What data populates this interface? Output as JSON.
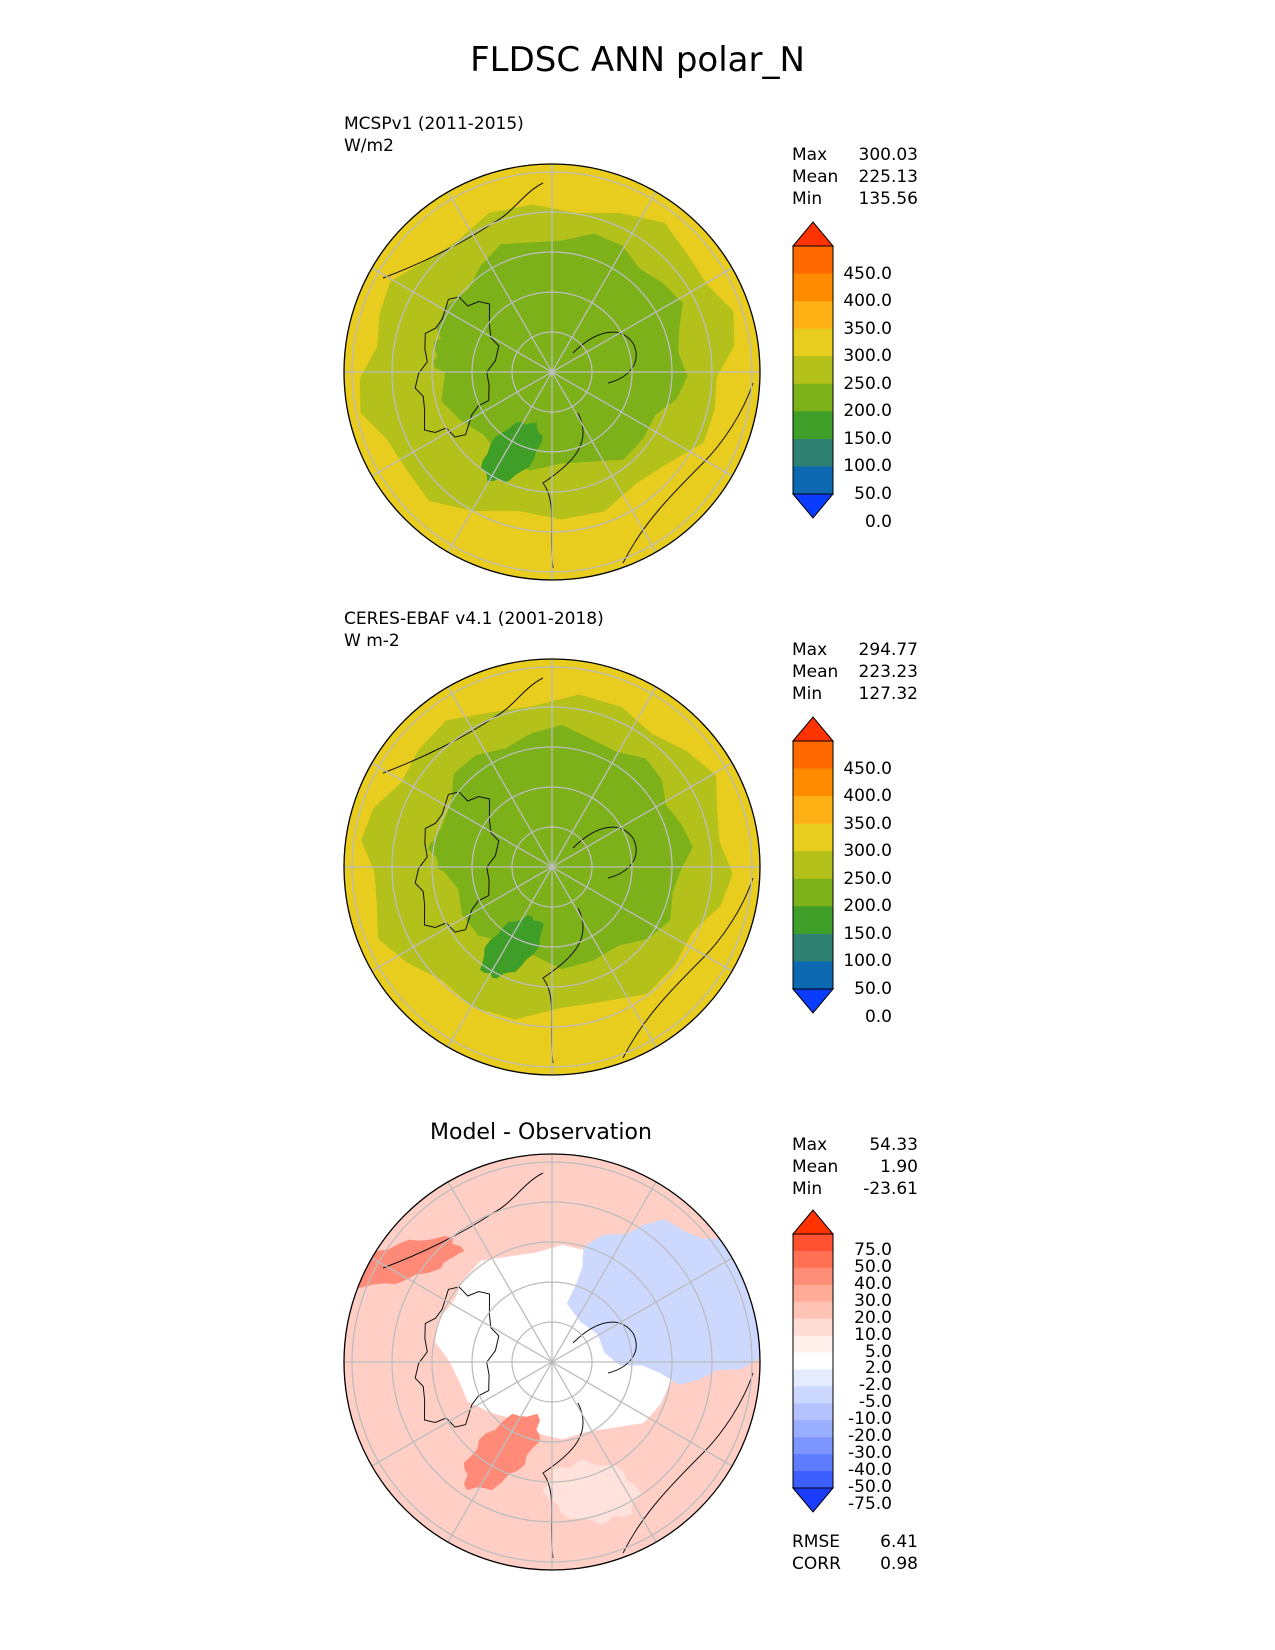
{
  "title": "FLDSC ANN polar_N",
  "chart_data": [
    {
      "type": "polar contour map",
      "panel": "test",
      "title_line1": "MCSPv1 (2011-2015)",
      "title_line2": "W/m2",
      "stats": {
        "max_label": "Max",
        "max": "300.03",
        "mean_label": "Mean",
        "mean": "225.13",
        "min_label": "Min",
        "min": "135.56"
      },
      "colorbar": {
        "ticks": [
          "450.0",
          "400.0",
          "350.0",
          "300.0",
          "250.0",
          "200.0",
          "150.0",
          "100.0",
          "50.0",
          "0.0"
        ],
        "colors": [
          "#ff3300",
          "#ff6a00",
          "#ff8c00",
          "#ffb014",
          "#e8cc1e",
          "#b3c11a",
          "#7cb11a",
          "#3e9e28",
          "#2e8070",
          "#0c68b0",
          "#0a3cff"
        ]
      },
      "field_colors": {
        "outer": "#e8cc1e",
        "mid": "#b3c11a",
        "inner": "#7cb11a",
        "low": "#3e9e28"
      }
    },
    {
      "type": "polar contour map",
      "panel": "reference",
      "title_line1": "CERES-EBAF v4.1 (2001-2018)",
      "title_line2": "W m-2",
      "stats": {
        "max_label": "Max",
        "max": "294.77",
        "mean_label": "Mean",
        "mean": "223.23",
        "min_label": "Min",
        "min": "127.32"
      },
      "colorbar": {
        "ticks": [
          "450.0",
          "400.0",
          "350.0",
          "300.0",
          "250.0",
          "200.0",
          "150.0",
          "100.0",
          "50.0",
          "0.0"
        ],
        "colors": [
          "#ff3300",
          "#ff6a00",
          "#ff8c00",
          "#ffb014",
          "#e8cc1e",
          "#b3c11a",
          "#7cb11a",
          "#3e9e28",
          "#2e8070",
          "#0c68b0",
          "#0a3cff"
        ]
      },
      "field_colors": {
        "outer": "#e8cc1e",
        "mid": "#b3c11a",
        "inner": "#7cb11a",
        "low": "#3e9e28"
      }
    },
    {
      "type": "polar contour map",
      "panel": "difference",
      "title": "Model - Observation",
      "stats": {
        "max_label": "Max",
        "max": "54.33",
        "mean_label": "Mean",
        "mean": "1.90",
        "min_label": "Min",
        "min": "-23.61"
      },
      "colorbar": {
        "ticks": [
          "75.0",
          "50.0",
          "40.0",
          "30.0",
          "20.0",
          "10.0",
          "5.0",
          "2.0",
          "-2.0",
          "-5.0",
          "-10.0",
          "-20.0",
          "-30.0",
          "-40.0",
          "-50.0",
          "-75.0"
        ],
        "colors": [
          "#ff3300",
          "#ff5030",
          "#ff7055",
          "#ff8e78",
          "#ffab98",
          "#ffc3b6",
          "#ffdcd4",
          "#fff0ec",
          "#ffffff",
          "#e6ecff",
          "#cdd8ff",
          "#b4c3ff",
          "#9aaeff",
          "#7e96ff",
          "#5f7cff",
          "#3d5eff",
          "#1a3cff"
        ]
      },
      "metrics": {
        "rmse_label": "RMSE",
        "rmse": "6.41",
        "corr_label": "CORR",
        "corr": "0.98"
      },
      "field_colors": {
        "positive": "#ffcfc6",
        "strong_positive": "#ff8a78",
        "negative": "#cdd8ff",
        "neutral": "#ffffff"
      }
    }
  ]
}
